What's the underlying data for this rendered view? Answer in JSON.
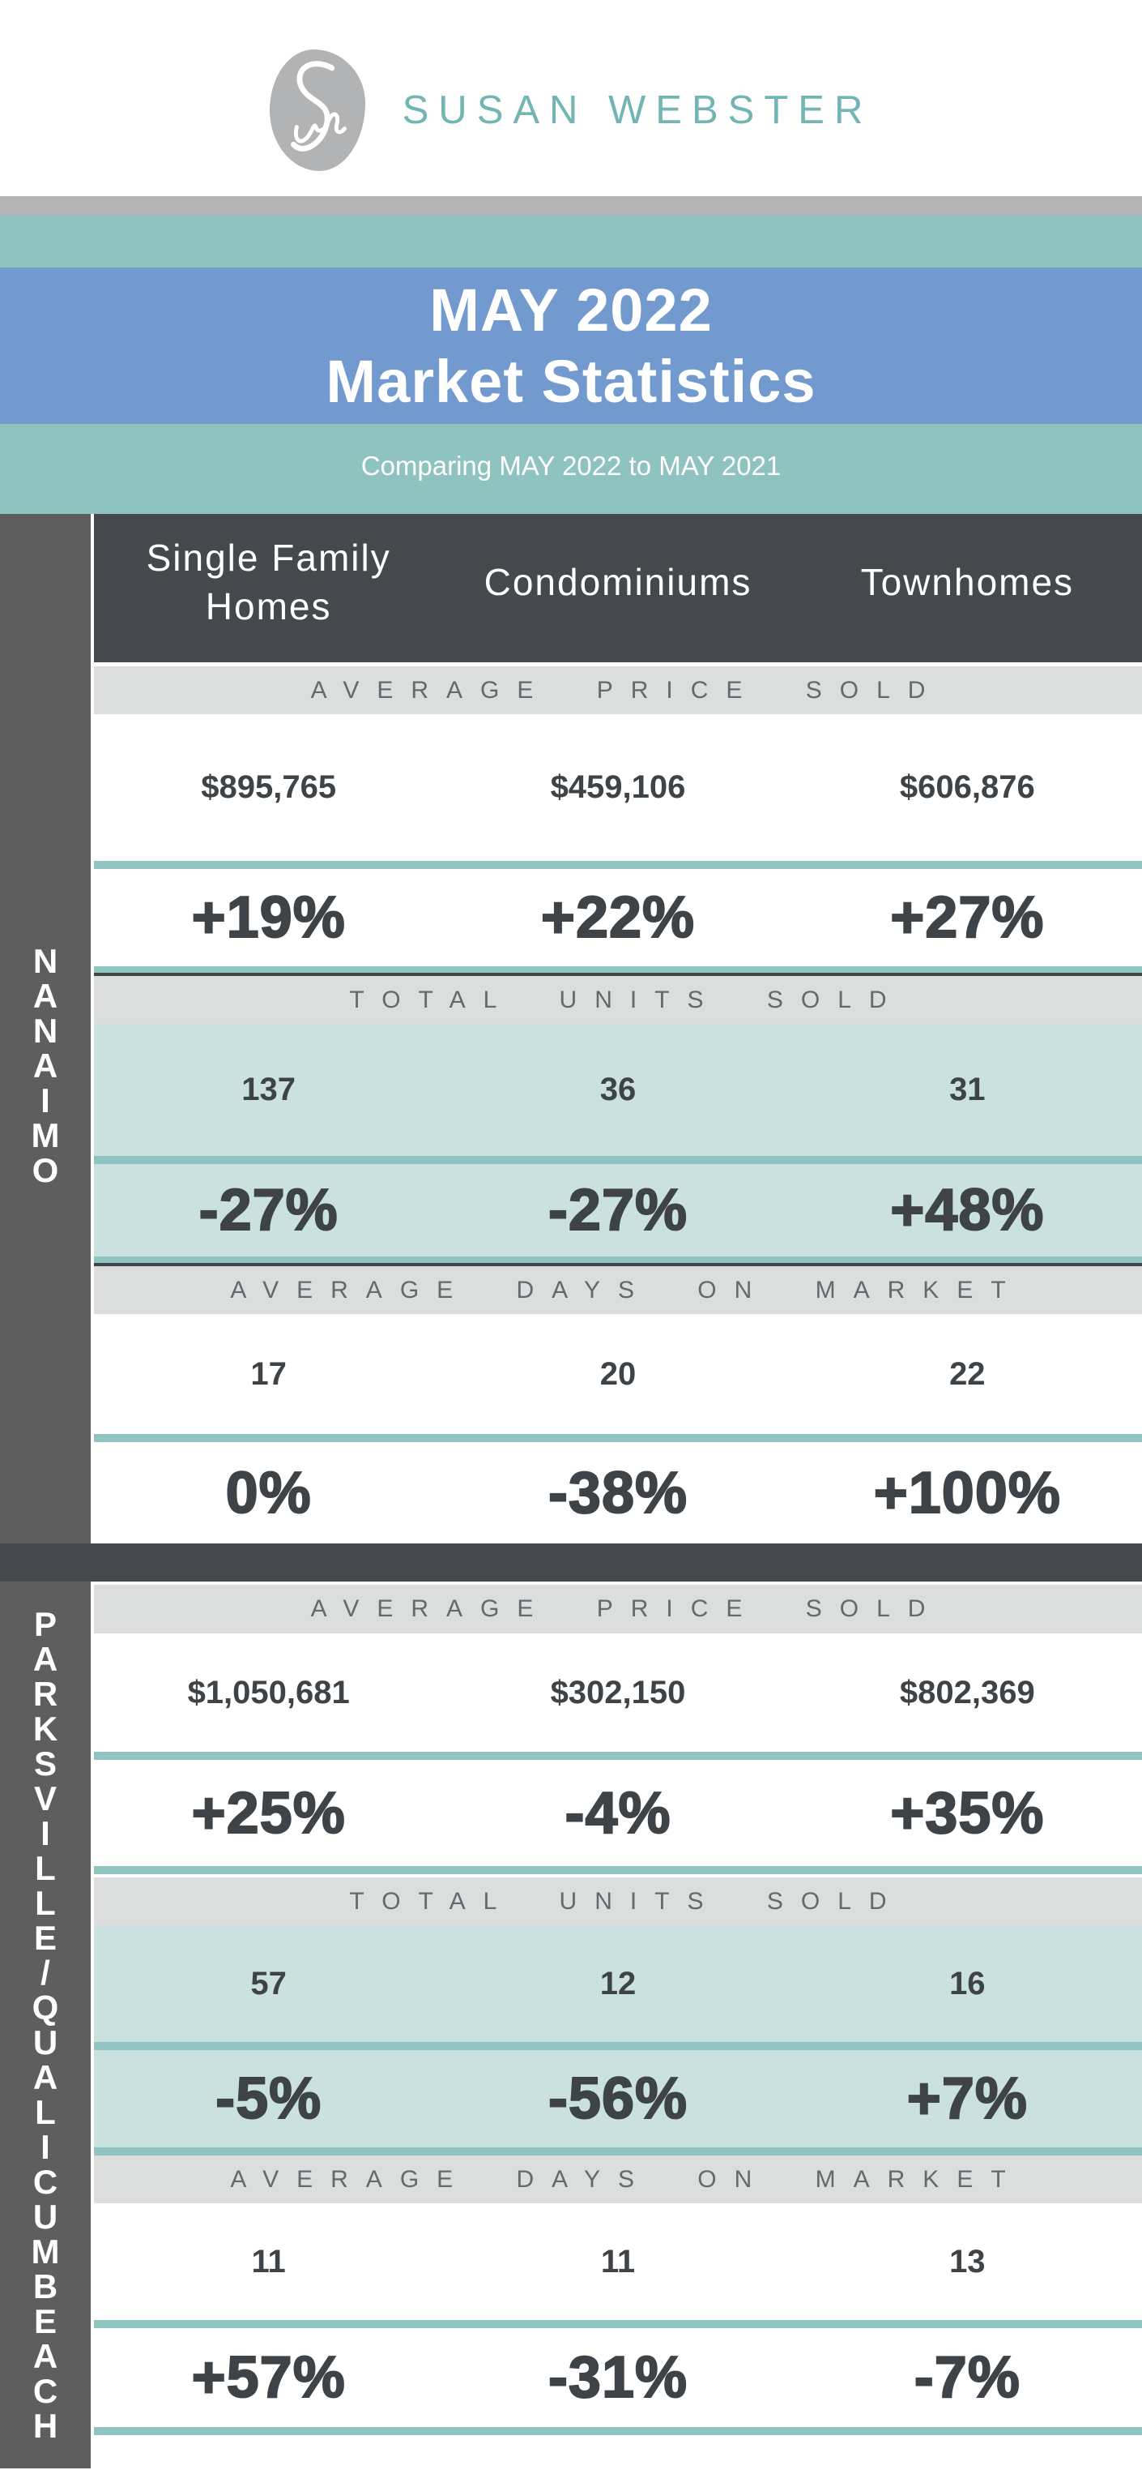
{
  "brand": {
    "name": "SUSAN WEBSTER"
  },
  "title": {
    "line1": "MAY 2022",
    "line2": "Market Statistics",
    "subtitle": "Comparing MAY 2022 to MAY 2021"
  },
  "sidebar": {
    "region1": "NANAIMO",
    "region2": "PARKSVILLE/QUALICUMBEACH"
  },
  "chart_data": {
    "type": "table",
    "title": "MAY 2022 Market Statistics",
    "subtitle": "Comparing MAY 2022 to MAY 2021",
    "columns": [
      "Single Family\nHomes",
      "Condominiums",
      "Townhomes"
    ],
    "sections": [
      {
        "region": "NANAIMO",
        "metrics": [
          {
            "label": "AVERAGE PRICE SOLD",
            "values": [
              "$895,765",
              "$459,106",
              "$606,876"
            ],
            "yoy_change": [
              "+19%",
              "+22%",
              "+27%"
            ]
          },
          {
            "label": "TOTAL UNITS SOLD",
            "values": [
              "137",
              "36",
              "31"
            ],
            "yoy_change": [
              "-27%",
              "-27%",
              "+48%"
            ]
          },
          {
            "label": "AVERAGE DAYS ON MARKET",
            "values": [
              "17",
              "20",
              "22"
            ],
            "yoy_change": [
              "0%",
              "-38%",
              "+100%"
            ]
          }
        ]
      },
      {
        "region": "PARKSVILLE/QUALICUM BEACH",
        "metrics": [
          {
            "label": "AVERAGE PRICE SOLD",
            "values": [
              "$1,050,681",
              "$302,150",
              "$802,369"
            ],
            "yoy_change": [
              "+25%",
              "-4%",
              "+35%"
            ]
          },
          {
            "label": "TOTAL UNITS SOLD",
            "values": [
              "57",
              "12",
              "16"
            ],
            "yoy_change": [
              "-5%",
              "-56%",
              "+7%"
            ]
          },
          {
            "label": "AVERAGE DAYS ON MARKET",
            "values": [
              "11",
              "11",
              "13"
            ],
            "yoy_change": [
              "+57%",
              "-31%",
              "-7%"
            ]
          }
        ]
      }
    ]
  },
  "colors": {
    "brand_teal": "#72b5b2",
    "teal": "#8ec3bf",
    "blue": "#729acf",
    "charcoal": "#45494d",
    "mint": "#cbe1df",
    "divider": "#8fc4c0",
    "sidebar_gray": "#5e5e5e",
    "band_gray": "#dcdddd",
    "band_text": "#65696d",
    "text_dark": "#3e4347",
    "strip_gray": "#b3b5b6",
    "logo_gray": "#b2b3b5"
  }
}
